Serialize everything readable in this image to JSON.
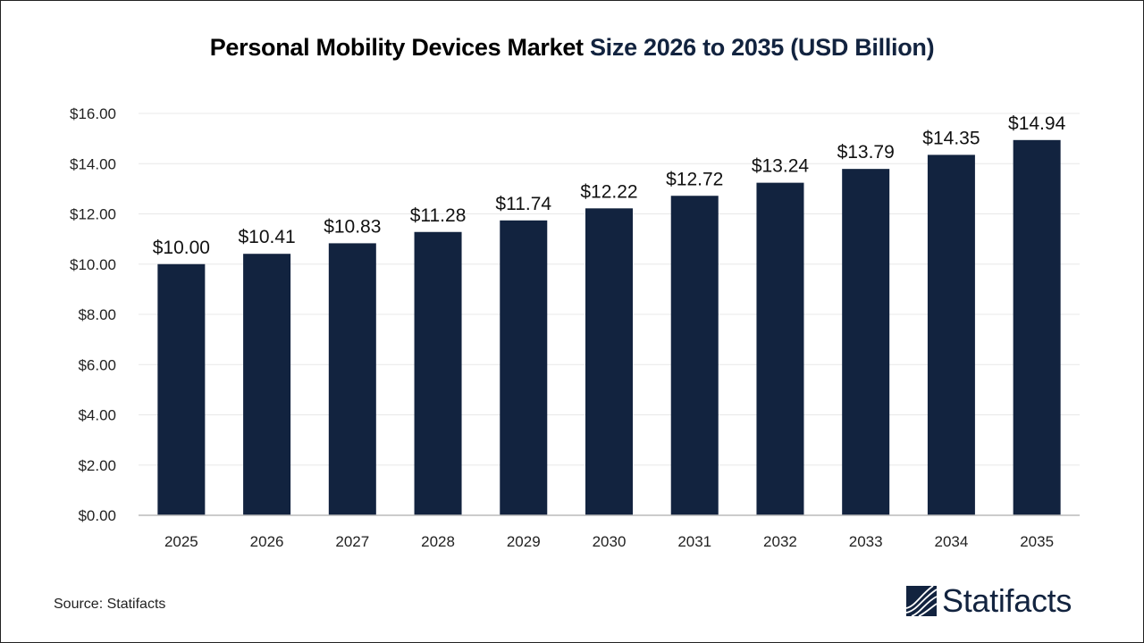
{
  "chart_data": {
    "type": "bar",
    "title_part1": "Personal Mobility Devices Market",
    "title_part2": "Size 2026 to 2035 (USD Billion)",
    "categories": [
      "2025",
      "2026",
      "2027",
      "2028",
      "2029",
      "2030",
      "2031",
      "2032",
      "2033",
      "2034",
      "2035"
    ],
    "values": [
      10.0,
      10.41,
      10.83,
      11.28,
      11.74,
      12.22,
      12.72,
      13.24,
      13.79,
      14.35,
      14.94
    ],
    "data_labels": [
      "$10.00",
      "$10.41",
      "$10.83",
      "$11.28",
      "$11.74",
      "$12.22",
      "$12.72",
      "$13.24",
      "$13.79",
      "$14.35",
      "$14.94"
    ],
    "yticks": [
      "$0.00",
      "$2.00",
      "$4.00",
      "$6.00",
      "$8.00",
      "$10.00",
      "$12.00",
      "$14.00",
      "$16.00"
    ],
    "ylim": [
      0,
      16
    ],
    "grid": true,
    "bar_color": "#12233f",
    "xlabel": "",
    "ylabel": ""
  },
  "source": "Source: Statifacts",
  "logo": {
    "text": "Statifacts",
    "color": "#12233f"
  }
}
